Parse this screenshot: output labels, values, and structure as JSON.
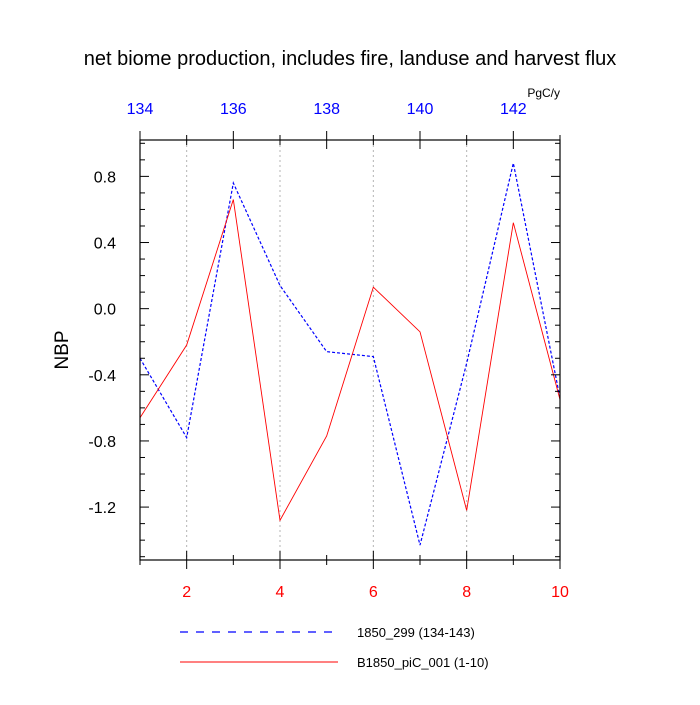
{
  "chart_data": {
    "type": "line",
    "title": "net biome production, includes fire, landuse and harvest flux",
    "units": "PgC/y",
    "ylabel": "NBP",
    "ylim": [
      -1.52,
      1.02
    ],
    "y_ticks": [
      -1.2,
      -0.8,
      -0.4,
      0.0,
      0.4,
      0.8
    ],
    "y_tick_labels": [
      "-1.2",
      "-0.8",
      "-0.4",
      "0.0",
      "0.4",
      "0.8"
    ],
    "y_minor_step": 0.1,
    "x_bottom": {
      "range": [
        1,
        10
      ],
      "ticks": [
        2,
        4,
        6,
        8,
        10
      ],
      "tick_labels": [
        "2",
        "4",
        "6",
        "8",
        "10"
      ],
      "color": "#ff0000"
    },
    "x_top": {
      "range": [
        134,
        143
      ],
      "ticks": [
        134,
        136,
        138,
        140,
        142
      ],
      "tick_labels": [
        "134",
        "136",
        "138",
        "140",
        "142"
      ],
      "color": "#0000ff"
    },
    "grid": "vertical dotted at labeled ticks",
    "series": [
      {
        "name": "1850_299 (134-143)",
        "axis": "top",
        "color": "#0000ff",
        "style": "dashed",
        "x": [
          134,
          135,
          136,
          137,
          138,
          139,
          140,
          141,
          142,
          143
        ],
        "values": [
          -0.3,
          -0.78,
          0.76,
          0.14,
          -0.26,
          -0.29,
          -1.43,
          -0.33,
          0.88,
          -0.54
        ]
      },
      {
        "name": "B1850_piC_001 (1-10)",
        "axis": "bottom",
        "color": "#ff0000",
        "style": "solid",
        "x": [
          1,
          2,
          3,
          4,
          5,
          6,
          7,
          8,
          9,
          10
        ],
        "values": [
          -0.66,
          -0.22,
          0.66,
          -1.28,
          -0.77,
          0.13,
          -0.14,
          -1.22,
          0.52,
          -0.55
        ]
      }
    ],
    "legend_position": "bottom"
  }
}
